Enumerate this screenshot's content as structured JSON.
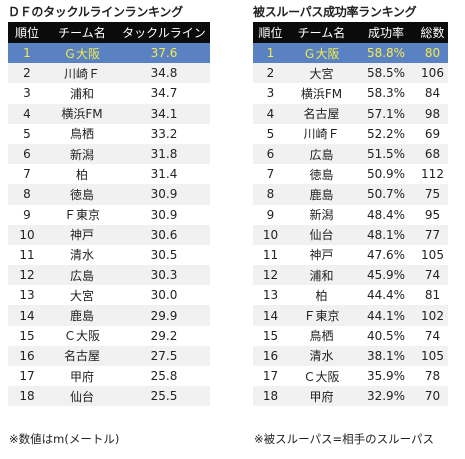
{
  "left": {
    "title": "ＤＦのタックルラインランキング",
    "columns": [
      "順位",
      "チーム名",
      "タックルライン"
    ],
    "rows": [
      [
        "1",
        "Ｇ大阪",
        "37.6"
      ],
      [
        "2",
        "川崎Ｆ",
        "34.8"
      ],
      [
        "3",
        "浦和",
        "34.7"
      ],
      [
        "4",
        "横浜FM",
        "34.1"
      ],
      [
        "5",
        "鳥栖",
        "33.2"
      ],
      [
        "6",
        "新潟",
        "31.8"
      ],
      [
        "7",
        "柏",
        "31.4"
      ],
      [
        "8",
        "徳島",
        "30.9"
      ],
      [
        "9",
        "Ｆ東京",
        "30.9"
      ],
      [
        "10",
        "神戸",
        "30.6"
      ],
      [
        "11",
        "清水",
        "30.5"
      ],
      [
        "12",
        "広島",
        "30.3"
      ],
      [
        "13",
        "大宮",
        "30.0"
      ],
      [
        "14",
        "鹿島",
        "29.9"
      ],
      [
        "15",
        "Ｃ大阪",
        "29.2"
      ],
      [
        "16",
        "名古屋",
        "27.5"
      ],
      [
        "17",
        "甲府",
        "25.8"
      ],
      [
        "18",
        "仙台",
        "25.5"
      ]
    ],
    "footnote": "※数値はm(メートル)"
  },
  "right": {
    "title": "被スルーパス成功率ランキング",
    "columns": [
      "順位",
      "チーム名",
      "成功率",
      "総数"
    ],
    "rows": [
      [
        "1",
        "Ｇ大阪",
        "58.8%",
        "80"
      ],
      [
        "2",
        "大宮",
        "58.5%",
        "106"
      ],
      [
        "3",
        "横浜FM",
        "58.3%",
        "84"
      ],
      [
        "4",
        "名古屋",
        "57.1%",
        "98"
      ],
      [
        "5",
        "川崎Ｆ",
        "52.2%",
        "69"
      ],
      [
        "6",
        "広島",
        "51.5%",
        "68"
      ],
      [
        "7",
        "徳島",
        "50.9%",
        "112"
      ],
      [
        "8",
        "鹿島",
        "50.7%",
        "75"
      ],
      [
        "9",
        "新潟",
        "48.4%",
        "95"
      ],
      [
        "10",
        "仙台",
        "48.1%",
        "77"
      ],
      [
        "11",
        "神戸",
        "47.6%",
        "105"
      ],
      [
        "12",
        "浦和",
        "45.9%",
        "74"
      ],
      [
        "13",
        "柏",
        "44.4%",
        "81"
      ],
      [
        "14",
        "Ｆ東京",
        "44.1%",
        "102"
      ],
      [
        "15",
        "鳥栖",
        "40.5%",
        "74"
      ],
      [
        "16",
        "清水",
        "38.1%",
        "105"
      ],
      [
        "17",
        "Ｃ大阪",
        "35.9%",
        "78"
      ],
      [
        "18",
        "甲府",
        "32.9%",
        "70"
      ]
    ],
    "footnote": "※被スルーパス=相手のスルーパス"
  },
  "colors": {
    "header_bg": "#0b0b0b",
    "header_text": "#ffffff",
    "highlight_bg": "#5a82c2",
    "highlight_text": "#f5eb4c",
    "stripe_bg": "#f1f1f1"
  }
}
